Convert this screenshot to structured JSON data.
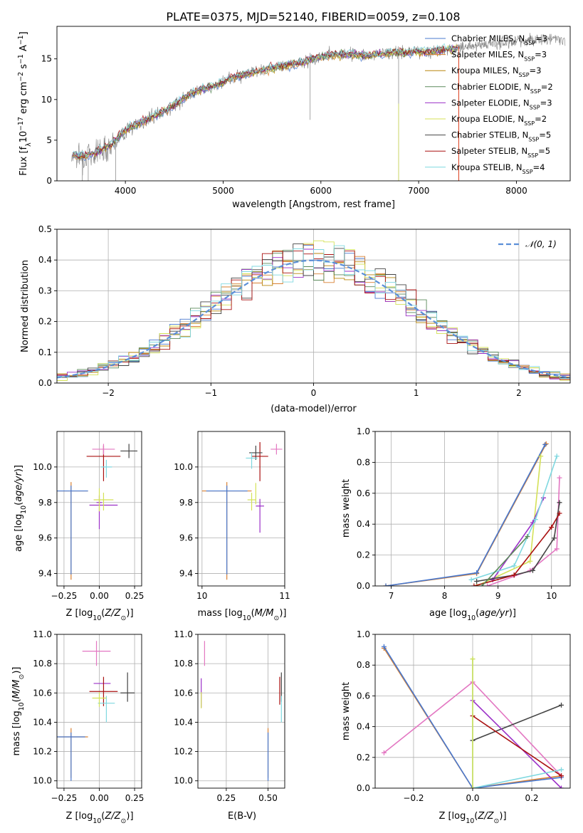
{
  "figure": {
    "title": "PLATE=0375, MJD=52140, FIBERID=0059, z=0.108"
  },
  "colors": {
    "Chabrier MILES": "#4878cf",
    "Salpeter MILES": "#d88032",
    "Kroupa MILES": "#b8860b",
    "Chabrier ELODIE": "#5b8a5b",
    "Salpeter ELODIE": "#9b30c8",
    "Kroupa ELODIE": "#d4e157",
    "Chabrier STELIB": "#444444",
    "Salpeter STELIB": "#aa1111",
    "Kroupa STELIB": "#7fd8e0",
    "extra_pink": "#e377c2",
    "extra_cyan": "#17becf",
    "data_gray": "#808080",
    "gauss": "#5b8fd8"
  },
  "chart_data": [
    {
      "id": "spectrum",
      "type": "line",
      "title": "PLATE=0375, MJD=52140, FIBERID=0059, z=0.108",
      "xlabel": "wavelength [Angstrom, rest frame]",
      "ylabel": "Flux [f_λ 10^-17 erg cm^-2 s^-1 A^-1]",
      "xlim": [
        3300,
        8550
      ],
      "ylim": [
        0,
        19
      ],
      "xticks": [
        4000,
        5000,
        6000,
        7000,
        8000
      ],
      "yticks": [
        0,
        5,
        10,
        15
      ],
      "grid": false,
      "legend_position": "right",
      "data_continuum": [
        [
          3450,
          3.2
        ],
        [
          3550,
          3.0
        ],
        [
          3650,
          3.2
        ],
        [
          3750,
          3.8
        ],
        [
          3850,
          4.4
        ],
        [
          3950,
          5.6
        ],
        [
          4050,
          6.6
        ],
        [
          4200,
          7.4
        ],
        [
          4350,
          8.3
        ],
        [
          4500,
          9.3
        ],
        [
          4650,
          10.6
        ],
        [
          4800,
          11.4
        ],
        [
          4950,
          11.8
        ],
        [
          5100,
          12.8
        ],
        [
          5250,
          13.2
        ],
        [
          5400,
          13.6
        ],
        [
          5550,
          14.0
        ],
        [
          5700,
          14.3
        ],
        [
          5850,
          14.7
        ],
        [
          6000,
          15.3
        ],
        [
          6150,
          15.5
        ],
        [
          6300,
          15.6
        ],
        [
          6450,
          15.4
        ],
        [
          6600,
          15.6
        ],
        [
          6750,
          15.8
        ],
        [
          6900,
          15.8
        ],
        [
          7050,
          15.9
        ],
        [
          7200,
          16.0
        ],
        [
          7350,
          16.2
        ],
        [
          7500,
          16.6
        ],
        [
          7650,
          16.8
        ],
        [
          7800,
          16.9
        ],
        [
          7950,
          17.1
        ],
        [
          8100,
          17.3
        ],
        [
          8250,
          17.4
        ],
        [
          8400,
          17.5
        ],
        [
          8500,
          17.5
        ]
      ],
      "models": [
        {
          "name": "Chabrier MILES",
          "nssp": "3",
          "color": "#4878cf"
        },
        {
          "name": "Salpeter MILES",
          "nssp": "3",
          "color": "#d88032"
        },
        {
          "name": "Kroupa MILES",
          "nssp": "3",
          "color": "#b8860b"
        },
        {
          "name": "Chabrier ELODIE",
          "nssp": "2",
          "color": "#5b8a5b"
        },
        {
          "name": "Salpeter ELODIE",
          "nssp": "3",
          "color": "#9b30c8"
        },
        {
          "name": "Kroupa ELODIE",
          "nssp": "2",
          "color": "#d4e157"
        },
        {
          "name": "Chabrier STELIB",
          "nssp": "5",
          "color": "#444444"
        },
        {
          "name": "Salpeter STELIB",
          "nssp": "5",
          "color": "#aa1111"
        },
        {
          "name": "Kroupa STELIB",
          "nssp": "4",
          "color": "#7fd8e0"
        }
      ]
    },
    {
      "id": "residuals",
      "type": "line",
      "xlabel": "(data-model)/error",
      "ylabel": "Normed distribution",
      "xlim": [
        -2.5,
        2.5
      ],
      "ylim": [
        0,
        0.5
      ],
      "xticks": [
        -2,
        -1,
        0,
        1,
        2
      ],
      "yticks": [
        0.0,
        0.1,
        0.2,
        0.3,
        0.4,
        0.5
      ],
      "grid": true,
      "legend_position": "upper right",
      "legend_label": "N(0,1)",
      "bin_width": 0.1
    },
    {
      "id": "z_age",
      "type": "scatter",
      "xlabel": "Z [log10(Z/Z⊙)]",
      "ylabel": "age [log10(age/yr)]",
      "xlim": [
        -0.3,
        0.3
      ],
      "ylim": [
        9.33,
        10.2
      ],
      "xticks": [
        -0.25,
        0.0,
        0.25
      ],
      "yticks": [
        9.4,
        9.6,
        9.8,
        10.0
      ],
      "grid": true,
      "points": [
        {
          "x": -0.2,
          "y": 9.865,
          "xerr": 0.12,
          "yerr_lo": 0.5,
          "yerr_hi": 0.05,
          "color": "#d88032"
        },
        {
          "x": -0.2,
          "y": 9.865,
          "xerr": 0.12,
          "yerr_lo": 0.47,
          "yerr_hi": 0.03,
          "color": "#4878cf"
        },
        {
          "x": 0.03,
          "y": 10.06,
          "xerr": 0.12,
          "yerr_lo": 0.14,
          "yerr_hi": 0.06,
          "color": "#aa1111"
        },
        {
          "x": 0.03,
          "y": 10.1,
          "xerr": 0.08,
          "yerr_lo": 0.03,
          "yerr_hi": 0.03,
          "color": "#e377c2"
        },
        {
          "x": 0.21,
          "y": 10.09,
          "xerr": 0.06,
          "yerr_lo": 0.04,
          "yerr_hi": 0.04,
          "color": "#444444"
        },
        {
          "x": 0.0,
          "y": 9.8,
          "xerr": 0.02,
          "yerr_lo": 0.15,
          "yerr_hi": 0.04,
          "color": "#9b30c8"
        },
        {
          "x": 0.03,
          "y": 9.785,
          "xerr": 0.1,
          "yerr_lo": 0.0,
          "yerr_hi": 0.0,
          "color": "#9b30c8"
        },
        {
          "x": 0.03,
          "y": 9.815,
          "xerr": 0.07,
          "yerr_lo": 0.06,
          "yerr_hi": 0.04,
          "color": "#d4e157"
        },
        {
          "x": 0.05,
          "y": 10.0,
          "xerr": 0.04,
          "yerr_lo": 0.06,
          "yerr_hi": 0.04,
          "color": "#7fd8e0"
        },
        {
          "x": 0.0,
          "y": 9.8,
          "xerr": 0.0,
          "yerr_lo": 0.05,
          "yerr_hi": 0.08,
          "color": "#d4e157"
        }
      ]
    },
    {
      "id": "mass_age",
      "type": "scatter",
      "xlabel": "mass [log10(M/M⊙)]",
      "ylabel": "",
      "xlim": [
        9.95,
        11.0
      ],
      "ylim": [
        9.33,
        10.2
      ],
      "xticks": [
        10,
        11
      ],
      "yticks": [
        9.4,
        9.6,
        9.8,
        10.0
      ],
      "grid": true,
      "points": [
        {
          "x": 10.3,
          "y": 9.865,
          "xerr": 0.3,
          "yerr_lo": 0.5,
          "yerr_hi": 0.05,
          "color": "#d88032"
        },
        {
          "x": 10.3,
          "y": 9.865,
          "xerr": 0.25,
          "yerr_lo": 0.47,
          "yerr_hi": 0.03,
          "color": "#4878cf"
        },
        {
          "x": 10.7,
          "y": 10.06,
          "xerr": 0.1,
          "yerr_lo": 0.14,
          "yerr_hi": 0.08,
          "color": "#aa1111"
        },
        {
          "x": 10.9,
          "y": 10.1,
          "xerr": 0.07,
          "yerr_lo": 0.03,
          "yerr_hi": 0.03,
          "color": "#e377c2"
        },
        {
          "x": 10.65,
          "y": 10.08,
          "xerr": 0.08,
          "yerr_lo": 0.04,
          "yerr_hi": 0.04,
          "color": "#444444"
        },
        {
          "x": 10.6,
          "y": 10.05,
          "xerr": 0.07,
          "yerr_lo": 0.06,
          "yerr_hi": 0.03,
          "color": "#7fd8e0"
        },
        {
          "x": 10.7,
          "y": 9.78,
          "xerr": 0.05,
          "yerr_lo": 0.15,
          "yerr_hi": 0.04,
          "color": "#9b30c8"
        },
        {
          "x": 10.6,
          "y": 9.815,
          "xerr": 0.05,
          "yerr_lo": 0.06,
          "yerr_hi": 0.04,
          "color": "#d4e157"
        },
        {
          "x": 10.65,
          "y": 9.85,
          "xerr": 0.0,
          "yerr_lo": 0.06,
          "yerr_hi": 0.06,
          "color": "#d4e157"
        }
      ]
    },
    {
      "id": "age_weight",
      "type": "line",
      "xlabel": "age [log10(age/yr)]",
      "ylabel": "mass weight",
      "xlim": [
        6.7,
        10.35
      ],
      "ylim": [
        0,
        1
      ],
      "xticks": [
        7,
        8,
        9,
        10
      ],
      "yticks": [
        0.0,
        0.2,
        0.4,
        0.6,
        0.8,
        1.0
      ],
      "grid": true,
      "series": [
        {
          "color": "#d88032",
          "points": [
            [
              6.9,
              0.0
            ],
            [
              8.6,
              0.08
            ],
            [
              9.9,
              0.92
            ]
          ]
        },
        {
          "color": "#4878cf",
          "points": [
            [
              6.9,
              0.0
            ],
            [
              8.6,
              0.085
            ],
            [
              9.88,
              0.915
            ]
          ]
        },
        {
          "color": "#d4e157",
          "points": [
            [
              8.6,
              0.0
            ],
            [
              9.6,
              0.16
            ],
            [
              9.8,
              0.84
            ]
          ]
        },
        {
          "color": "#9b30c8",
          "points": [
            [
              8.9,
              0.04
            ],
            [
              9.65,
              0.41
            ],
            [
              9.85,
              0.57
            ]
          ]
        },
        {
          "color": "#7fd8e0",
          "points": [
            [
              8.5,
              0.04
            ],
            [
              9.3,
              0.13
            ],
            [
              9.7,
              0.43
            ],
            [
              10.1,
              0.84
            ]
          ]
        },
        {
          "color": "#e377c2",
          "points": [
            [
              8.8,
              0.0
            ],
            [
              9.6,
              0.1
            ],
            [
              10.1,
              0.24
            ],
            [
              10.15,
              0.7
            ]
          ]
        },
        {
          "color": "#444444",
          "points": [
            [
              8.6,
              0.03
            ],
            [
              9.3,
              0.07
            ],
            [
              9.65,
              0.1
            ],
            [
              10.05,
              0.31
            ],
            [
              10.15,
              0.54
            ]
          ]
        },
        {
          "color": "#aa1111",
          "points": [
            [
              8.55,
              0.0
            ],
            [
              9.3,
              0.07
            ],
            [
              10.0,
              0.38
            ],
            [
              10.15,
              0.47
            ]
          ]
        },
        {
          "color": "#5b8a5b",
          "points": [
            [
              8.7,
              0.0
            ],
            [
              9.55,
              0.32
            ]
          ]
        }
      ]
    },
    {
      "id": "z_mass",
      "type": "scatter",
      "xlabel": "Z [log10(Z/Z⊙)]",
      "ylabel": "mass [log10(M/M⊙)]",
      "xlim": [
        -0.3,
        0.3
      ],
      "ylim": [
        9.95,
        11.0
      ],
      "xticks": [
        -0.25,
        0.0,
        0.25
      ],
      "yticks": [
        10.0,
        10.2,
        10.4,
        10.6,
        10.8,
        11.0
      ],
      "grid": true,
      "points": [
        {
          "x": -0.2,
          "y": 10.3,
          "xerr": 0.12,
          "yerr_lo": 0.28,
          "yerr_hi": 0.06,
          "color": "#d88032"
        },
        {
          "x": -0.2,
          "y": 10.3,
          "xerr": 0.1,
          "yerr_lo": 0.3,
          "yerr_hi": 0.03,
          "color": "#4878cf"
        },
        {
          "x": -0.02,
          "y": 10.885,
          "xerr": 0.1,
          "yerr_lo": 0.1,
          "yerr_hi": 0.07,
          "color": "#e377c2"
        },
        {
          "x": 0.02,
          "y": 10.665,
          "xerr": 0.06,
          "yerr_lo": 0.0,
          "yerr_hi": 0.0,
          "color": "#9b30c8"
        },
        {
          "x": 0.03,
          "y": 10.61,
          "xerr": 0.1,
          "yerr_lo": 0.1,
          "yerr_hi": 0.1,
          "color": "#aa1111"
        },
        {
          "x": 0.2,
          "y": 10.6,
          "xerr": 0.05,
          "yerr_lo": 0.06,
          "yerr_hi": 0.14,
          "color": "#444444"
        },
        {
          "x": 0.05,
          "y": 10.53,
          "xerr": 0.06,
          "yerr_lo": 0.13,
          "yerr_hi": 0.05,
          "color": "#7fd8e0"
        },
        {
          "x": 0.0,
          "y": 10.565,
          "xerr": 0.05,
          "yerr_lo": 0.06,
          "yerr_hi": 0.04,
          "color": "#d4e157"
        }
      ]
    },
    {
      "id": "ebv_mass",
      "type": "scatter",
      "xlabel": "E(B-V)",
      "ylabel": "",
      "xlim": [
        0.08,
        0.6
      ],
      "ylim": [
        9.95,
        11.0
      ],
      "xticks": [
        0.25,
        0.5
      ],
      "yticks": [
        10.0,
        10.2,
        10.4,
        10.6,
        10.8,
        11.0
      ],
      "grid": true,
      "points": [
        {
          "x": 0.5,
          "y": 10.3,
          "xerr": 0,
          "yerr_lo": 0.28,
          "yerr_hi": 0.06,
          "color": "#d88032"
        },
        {
          "x": 0.5,
          "y": 10.3,
          "xerr": 0,
          "yerr_lo": 0.3,
          "yerr_hi": 0.03,
          "color": "#4878cf"
        },
        {
          "x": 0.12,
          "y": 10.885,
          "xerr": 0,
          "yerr_lo": 0.1,
          "yerr_hi": 0.07,
          "color": "#e377c2"
        },
        {
          "x": 0.1,
          "y": 10.6,
          "xerr": 0,
          "yerr_lo": 0.1,
          "yerr_hi": 0.1,
          "color": "#9b30c8"
        },
        {
          "x": 0.1,
          "y": 10.565,
          "xerr": 0,
          "yerr_lo": 0.07,
          "yerr_hi": 0.04,
          "color": "#d4e157"
        },
        {
          "x": 0.58,
          "y": 10.6,
          "xerr": 0,
          "yerr_lo": 0.06,
          "yerr_hi": 0.14,
          "color": "#444444"
        },
        {
          "x": 0.57,
          "y": 10.61,
          "xerr": 0,
          "yerr_lo": 0.09,
          "yerr_hi": 0.1,
          "color": "#aa1111"
        },
        {
          "x": 0.58,
          "y": 10.53,
          "xerr": 0,
          "yerr_lo": 0.13,
          "yerr_hi": 0.05,
          "color": "#7fd8e0"
        }
      ]
    },
    {
      "id": "z_weight",
      "type": "line",
      "xlabel": "Z [log10(Z/Z⊙)]",
      "ylabel": "mass weight",
      "xlim": [
        -0.33,
        0.33
      ],
      "ylim": [
        0,
        1
      ],
      "xticks": [
        -0.2,
        0.0,
        0.2
      ],
      "yticks": [
        0.0,
        0.2,
        0.4,
        0.6,
        0.8,
        1.0
      ],
      "grid": true,
      "series": [
        {
          "color": "#d88032",
          "points": [
            [
              -0.3,
              0.91
            ],
            [
              0.0,
              0.0
            ],
            [
              0.3,
              0.08
            ]
          ]
        },
        {
          "color": "#4878cf",
          "points": [
            [
              -0.3,
              0.92
            ],
            [
              0.0,
              0.0
            ],
            [
              0.3,
              0.07
            ]
          ]
        },
        {
          "color": "#e377c2",
          "points": [
            [
              -0.3,
              0.23
            ],
            [
              0.0,
              0.69
            ],
            [
              0.3,
              0.08
            ]
          ]
        },
        {
          "color": "#444444",
          "points": [
            [
              0.0,
              0.31
            ],
            [
              0.3,
              0.54
            ]
          ]
        },
        {
          "color": "#9b30c8",
          "points": [
            [
              0.0,
              0.57
            ],
            [
              0.3,
              0.0
            ]
          ]
        },
        {
          "color": "#aa1111",
          "points": [
            [
              0.0,
              0.47
            ],
            [
              0.3,
              0.08
            ]
          ]
        },
        {
          "color": "#7fd8e0",
          "points": [
            [
              0.0,
              0.0
            ],
            [
              0.3,
              0.12
            ]
          ]
        },
        {
          "color": "#7fd8e0",
          "points": [
            [
              0.0,
              0.0
            ],
            [
              0.0,
              0.84
            ]
          ]
        },
        {
          "color": "#d4e157",
          "points": [
            [
              0.0,
              0.0
            ],
            [
              0.0,
              0.84
            ]
          ]
        }
      ]
    }
  ]
}
